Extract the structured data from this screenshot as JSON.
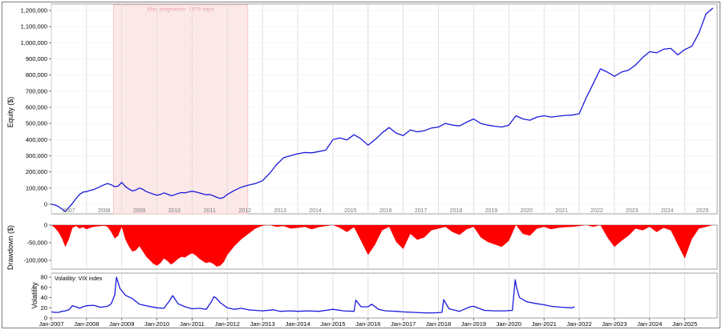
{
  "chart_data": [
    {
      "type": "line",
      "ylabel": "Equity ($)",
      "ylim": [
        -60000,
        1240000
      ],
      "y_ticks": [
        0,
        100000,
        200000,
        300000,
        400000,
        500000,
        600000,
        700000,
        800000,
        900000,
        1000000,
        1100000,
        1200000
      ],
      "y_tick_labels": [
        "0",
        "100,000",
        "200,000",
        "300,000",
        "400,000",
        "500,000",
        "600,000",
        "700,000",
        "800,000",
        "900,000",
        "1,000,000",
        "1,100,000",
        "1,200,000"
      ],
      "year_labels": [
        "2007",
        "2008",
        "2009",
        "2010",
        "2011",
        "2012",
        "2013",
        "2014",
        "2015",
        "2016",
        "2017",
        "2018",
        "2019",
        "2020",
        "2021",
        "2022",
        "2023",
        "2024",
        "2025"
      ],
      "shaded_region": {
        "label": "Max stagnation: 1379 days",
        "x_start": 2008.77,
        "x_end": 2012.58,
        "color": "#fde8e8"
      },
      "series": [
        {
          "color": "#1a1adb",
          "x": [
            2007.0,
            2007.1,
            2007.2,
            2007.3,
            2007.4,
            2007.5,
            2007.6,
            2007.7,
            2007.8,
            2007.9,
            2008.0,
            2008.1,
            2008.2,
            2008.3,
            2008.4,
            2008.5,
            2008.6,
            2008.7,
            2008.8,
            2008.9,
            2009.0,
            2009.1,
            2009.2,
            2009.3,
            2009.4,
            2009.5,
            2009.6,
            2009.7,
            2009.8,
            2009.9,
            2010.0,
            2010.1,
            2010.2,
            2010.3,
            2010.4,
            2010.5,
            2010.6,
            2010.7,
            2010.8,
            2010.9,
            2011.0,
            2011.1,
            2011.2,
            2011.3,
            2011.4,
            2011.5,
            2011.6,
            2011.7,
            2011.8,
            2011.9,
            2012.0,
            2012.2,
            2012.4,
            2012.6,
            2012.8,
            2013.0,
            2013.2,
            2013.4,
            2013.6,
            2013.8,
            2014.0,
            2014.2,
            2014.4,
            2014.6,
            2014.8,
            2015.0,
            2015.2,
            2015.4,
            2015.6,
            2015.8,
            2016.0,
            2016.2,
            2016.4,
            2016.6,
            2016.8,
            2017.0,
            2017.2,
            2017.4,
            2017.6,
            2017.8,
            2018.0,
            2018.2,
            2018.4,
            2018.6,
            2018.8,
            2019.0,
            2019.2,
            2019.4,
            2019.6,
            2019.8,
            2020.0,
            2020.2,
            2020.4,
            2020.6,
            2020.8,
            2021.0,
            2021.2,
            2021.4,
            2021.6,
            2021.8,
            2022.0,
            2022.2,
            2022.4,
            2022.6,
            2022.8,
            2023.0,
            2023.2,
            2023.4,
            2023.6,
            2023.8,
            2024.0,
            2024.2,
            2024.4,
            2024.6,
            2024.8,
            2025.0,
            2025.2,
            2025.4,
            2025.6,
            2025.8
          ],
          "y": [
            0,
            -5000,
            -15000,
            -30000,
            -45000,
            -20000,
            5000,
            35000,
            60000,
            75000,
            78000,
            85000,
            90000,
            100000,
            110000,
            120000,
            128000,
            120000,
            108000,
            112000,
            135000,
            110000,
            95000,
            82000,
            88000,
            100000,
            92000,
            78000,
            70000,
            62000,
            55000,
            60000,
            70000,
            62000,
            52000,
            58000,
            66000,
            72000,
            70000,
            76000,
            80000,
            76000,
            70000,
            64000,
            58000,
            60000,
            52000,
            42000,
            36000,
            42000,
            60000,
            85000,
            105000,
            118000,
            128000,
            145000,
            190000,
            245000,
            288000,
            300000,
            312000,
            320000,
            318000,
            326000,
            335000,
            400000,
            410000,
            398000,
            430000,
            405000,
            365000,
            400000,
            442000,
            475000,
            440000,
            425000,
            460000,
            448000,
            455000,
            472000,
            478000,
            500000,
            490000,
            485000,
            508000,
            528000,
            500000,
            490000,
            483000,
            478000,
            490000,
            548000,
            528000,
            520000,
            540000,
            548000,
            540000,
            545000,
            550000,
            552000,
            560000,
            660000,
            748000,
            838000,
            818000,
            792000,
            818000,
            830000,
            862000,
            908000,
            945000,
            938000,
            960000,
            965000,
            925000,
            958000,
            978000,
            1060000,
            1178000,
            1215000
          ]
        }
      ]
    },
    {
      "type": "area",
      "ylabel": "Drawdown ($)",
      "ylim": [
        -125000,
        0
      ],
      "y_ticks": [
        0,
        -50000,
        -100000
      ],
      "y_tick_labels": [
        "0",
        "-50,000",
        "-100,000"
      ],
      "fill_color": "#ff0000",
      "series": [
        {
          "x": [
            2007.0,
            2007.1,
            2007.2,
            2007.3,
            2007.4,
            2007.5,
            2007.6,
            2007.7,
            2007.8,
            2007.9,
            2008.0,
            2008.1,
            2008.2,
            2008.3,
            2008.4,
            2008.5,
            2008.6,
            2008.7,
            2008.8,
            2008.9,
            2009.0,
            2009.1,
            2009.2,
            2009.3,
            2009.4,
            2009.5,
            2009.6,
            2009.7,
            2009.8,
            2009.9,
            2010.0,
            2010.1,
            2010.2,
            2010.3,
            2010.4,
            2010.5,
            2010.6,
            2010.7,
            2010.8,
            2010.9,
            2011.0,
            2011.1,
            2011.2,
            2011.3,
            2011.4,
            2011.5,
            2011.6,
            2011.7,
            2011.8,
            2011.9,
            2012.0,
            2012.2,
            2012.4,
            2012.6,
            2012.8,
            2013.0,
            2013.2,
            2013.4,
            2013.6,
            2013.8,
            2014.0,
            2014.2,
            2014.4,
            2014.6,
            2014.8,
            2015.0,
            2015.2,
            2015.4,
            2015.6,
            2015.8,
            2016.0,
            2016.2,
            2016.4,
            2016.6,
            2016.8,
            2017.0,
            2017.2,
            2017.4,
            2017.6,
            2017.8,
            2018.0,
            2018.2,
            2018.4,
            2018.6,
            2018.8,
            2019.0,
            2019.2,
            2019.4,
            2019.6,
            2019.8,
            2020.0,
            2020.2,
            2020.4,
            2020.6,
            2020.8,
            2021.0,
            2021.2,
            2021.4,
            2021.6,
            2021.8,
            2022.0,
            2022.2,
            2022.4,
            2022.6,
            2022.8,
            2023.0,
            2023.2,
            2023.4,
            2023.6,
            2023.8,
            2024.0,
            2024.2,
            2024.4,
            2024.6,
            2024.8,
            2025.0,
            2025.2,
            2025.4,
            2025.6,
            2025.8
          ],
          "y": [
            0,
            -8000,
            -20000,
            -38000,
            -62000,
            -40000,
            -8000,
            -3000,
            -10000,
            -6000,
            -12000,
            -8000,
            -5000,
            -4000,
            -3000,
            -2000,
            -5000,
            -20000,
            -38000,
            -30000,
            -5000,
            -40000,
            -60000,
            -75000,
            -72000,
            -60000,
            -75000,
            -90000,
            -100000,
            -110000,
            -115000,
            -108000,
            -95000,
            -102000,
            -112000,
            -105000,
            -96000,
            -90000,
            -92000,
            -85000,
            -80000,
            -86000,
            -95000,
            -102000,
            -108000,
            -105000,
            -110000,
            -118000,
            -115000,
            -105000,
            -85000,
            -60000,
            -40000,
            -25000,
            -10000,
            -2000,
            0,
            -5000,
            -3000,
            -10000,
            -8000,
            -5000,
            -12000,
            -6000,
            -3000,
            0,
            -8000,
            -20000,
            -6000,
            -45000,
            -85000,
            -55000,
            -15000,
            -5000,
            -48000,
            -68000,
            -25000,
            -42000,
            -35000,
            -15000,
            -10000,
            -5000,
            -20000,
            -28000,
            -12000,
            -5000,
            -35000,
            -48000,
            -55000,
            -62000,
            -45000,
            0,
            -25000,
            -30000,
            -10000,
            -5000,
            -12000,
            -8000,
            -6000,
            -5000,
            -3000,
            0,
            -5000,
            0,
            -35000,
            -62000,
            -45000,
            -30000,
            -10000,
            -15000,
            -5000,
            -20000,
            -8000,
            -15000,
            -55000,
            -95000,
            -40000,
            -10000,
            -5000,
            0
          ]
        }
      ]
    },
    {
      "type": "line",
      "ylabel": "Volatility",
      "legend": "Volatility: VIX index",
      "ylim": [
        0,
        88
      ],
      "y_ticks": [
        0,
        20,
        40,
        60,
        80
      ],
      "y_tick_labels": [
        "0",
        "20",
        "40",
        "60",
        "80"
      ],
      "x_tick_labels": [
        "Jan-2007",
        "Jan-2008",
        "Jan-2009",
        "Jan-2010",
        "Jan-2011",
        "Jan-2012",
        "Jan-2013",
        "Jan-2014",
        "Jan-2015",
        "Jan-2016",
        "Jan-2017",
        "Jan-2018",
        "Jan-2019",
        "Jan-2020",
        "Jan-2021",
        "Jan-2022",
        "Jan-2023",
        "Jan-2024",
        "Jan-2025"
      ],
      "series": [
        {
          "color": "#1a1adb",
          "x": [
            2007.0,
            2007.1,
            2007.2,
            2007.3,
            2007.4,
            2007.5,
            2007.6,
            2007.7,
            2007.8,
            2007.9,
            2008.0,
            2008.2,
            2008.4,
            2008.6,
            2008.7,
            2008.8,
            2008.85,
            2008.95,
            2009.1,
            2009.3,
            2009.5,
            2009.7,
            2010.0,
            2010.2,
            2010.35,
            2010.45,
            2010.6,
            2010.8,
            2011.0,
            2011.2,
            2011.4,
            2011.55,
            2011.62,
            2011.7,
            2011.8,
            2012.0,
            2012.2,
            2012.4,
            2012.6,
            2012.8,
            2013.0,
            2013.3,
            2013.5,
            2013.8,
            2014.0,
            2014.3,
            2014.6,
            2014.8,
            2015.0,
            2015.3,
            2015.6,
            2015.65,
            2015.8,
            2016.0,
            2016.1,
            2016.3,
            2016.5,
            2016.8,
            2017.0,
            2017.3,
            2017.6,
            2017.9,
            2018.1,
            2018.15,
            2018.3,
            2018.6,
            2018.9,
            2019.0,
            2019.3,
            2019.6,
            2019.9,
            2020.1,
            2020.18,
            2020.22,
            2020.3,
            2020.5,
            2020.8,
            2021.0,
            2021.2,
            2021.5,
            2021.8,
            2021.87
          ],
          "y": [
            12,
            11,
            11,
            13,
            14,
            16,
            24,
            22,
            19,
            22,
            24,
            25,
            21,
            23,
            28,
            45,
            80,
            58,
            45,
            38,
            27,
            24,
            20,
            19,
            33,
            44,
            28,
            22,
            18,
            19,
            17,
            32,
            42,
            38,
            30,
            20,
            17,
            19,
            16,
            15,
            14,
            16,
            13,
            14,
            13,
            14,
            13,
            15,
            17,
            14,
            13,
            35,
            22,
            22,
            27,
            17,
            14,
            13,
            12,
            11,
            10,
            10,
            11,
            36,
            18,
            13,
            22,
            23,
            15,
            14,
            14,
            15,
            75,
            60,
            40,
            32,
            28,
            26,
            23,
            21,
            20,
            22
          ]
        }
      ]
    }
  ]
}
